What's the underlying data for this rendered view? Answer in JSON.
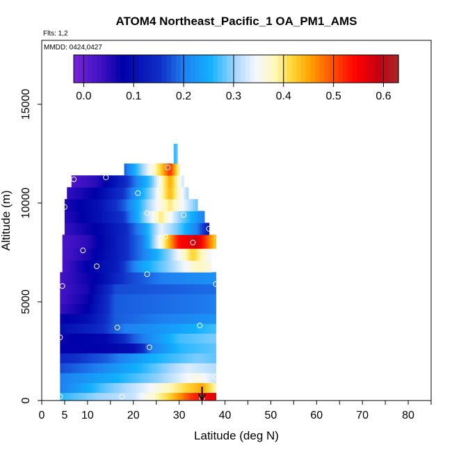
{
  "chart_data": {
    "type": "heatmap",
    "title": "ATOM4 Northeast_Pacific_1 OA_PM1_AMS",
    "subtitle_flights": "Flts: 1,2",
    "subtitle_dates": "MMDD: 0424,0427",
    "xlabel": "Latitude (deg N)",
    "ylabel": "Altitude (m)",
    "xlim": [
      0,
      85
    ],
    "ylim": [
      0,
      17500
    ],
    "x_ticks": [
      0,
      5,
      10,
      20,
      30,
      40,
      50,
      60,
      70,
      80
    ],
    "x_tick_labels": [
      "0",
      "5",
      "10",
      "20",
      "30",
      "40",
      "50",
      "60",
      "70",
      "80"
    ],
    "y_ticks": [
      0,
      5000,
      10000,
      15000
    ],
    "y_tick_labels": [
      "0",
      "5000",
      "10000",
      "15000"
    ],
    "colorbar": {
      "range": [
        -0.02,
        0.63
      ],
      "ticks": [
        0.0,
        0.1,
        0.2,
        0.3,
        0.4,
        0.5,
        0.6
      ],
      "tick_labels": [
        "0.0",
        "0.1",
        "0.2",
        "0.3",
        "0.4",
        "0.5",
        "0.6"
      ],
      "stops": [
        [
          0.0,
          "#7a22d8"
        ],
        [
          0.09,
          "#3a10c0"
        ],
        [
          0.15,
          "#0000a8"
        ],
        [
          0.27,
          "#1030c8"
        ],
        [
          0.34,
          "#2080f0"
        ],
        [
          0.42,
          "#10b0ff"
        ],
        [
          0.5,
          "#a8d8ff"
        ],
        [
          0.56,
          "#f4f8ff"
        ],
        [
          0.62,
          "#fff8b8"
        ],
        [
          0.67,
          "#ffd838"
        ],
        [
          0.73,
          "#ffa000"
        ],
        [
          0.81,
          "#ff4000"
        ],
        [
          0.87,
          "#ff0000"
        ],
        [
          0.94,
          "#c00010"
        ],
        [
          1.0,
          "#a82828"
        ]
      ]
    },
    "x_range_note": "Data coverage approx 4 to 38 deg N",
    "rows": [
      {
        "alt0": 0,
        "alt1": 400,
        "x0": 4,
        "x1": 38,
        "profile": [
          [
            4,
            0.26
          ],
          [
            12,
            0.3
          ],
          [
            20,
            0.32
          ],
          [
            28,
            0.42
          ],
          [
            33,
            0.52
          ],
          [
            38,
            0.57
          ]
        ]
      },
      {
        "alt0": 400,
        "alt1": 900,
        "x0": 4,
        "x1": 38,
        "profile": [
          [
            4,
            0.2
          ],
          [
            14,
            0.28
          ],
          [
            22,
            0.33
          ],
          [
            30,
            0.4
          ],
          [
            35,
            0.45
          ],
          [
            38,
            0.38
          ]
        ]
      },
      {
        "alt0": 900,
        "alt1": 1400,
        "x0": 4,
        "x1": 38,
        "profile": [
          [
            4,
            0.2
          ],
          [
            16,
            0.25
          ],
          [
            26,
            0.3
          ],
          [
            34,
            0.36
          ],
          [
            38,
            0.32
          ]
        ]
      },
      {
        "alt0": 1400,
        "alt1": 1900,
        "x0": 4,
        "x1": 38,
        "profile": [
          [
            4,
            0.17
          ],
          [
            12,
            0.2
          ],
          [
            22,
            0.26
          ],
          [
            32,
            0.33
          ],
          [
            38,
            0.31
          ]
        ]
      },
      {
        "alt0": 1900,
        "alt1": 2400,
        "x0": 4,
        "x1": 38,
        "profile": [
          [
            4,
            0.14
          ],
          [
            14,
            0.18
          ],
          [
            24,
            0.25
          ],
          [
            34,
            0.29
          ],
          [
            38,
            0.28
          ]
        ]
      },
      {
        "alt0": 2400,
        "alt1": 2900,
        "x0": 4,
        "x1": 38,
        "profile": [
          [
            4,
            0.08
          ],
          [
            12,
            0.08
          ],
          [
            20,
            0.1
          ],
          [
            24,
            0.2
          ],
          [
            30,
            0.26
          ],
          [
            38,
            0.28
          ]
        ]
      },
      {
        "alt0": 2900,
        "alt1": 3400,
        "x0": 4,
        "x1": 38,
        "profile": [
          [
            4,
            0.07
          ],
          [
            14,
            0.09
          ],
          [
            20,
            0.18
          ],
          [
            30,
            0.27
          ],
          [
            38,
            0.29
          ]
        ]
      },
      {
        "alt0": 3400,
        "alt1": 3900,
        "x0": 4,
        "x1": 38,
        "profile": [
          [
            4,
            0.1
          ],
          [
            12,
            0.14
          ],
          [
            18,
            0.2
          ],
          [
            28,
            0.23
          ],
          [
            38,
            0.27
          ]
        ]
      },
      {
        "alt0": 3900,
        "alt1": 4400,
        "x0": 4,
        "x1": 38,
        "profile": [
          [
            4,
            0.07
          ],
          [
            10,
            0.1
          ],
          [
            16,
            0.18
          ],
          [
            26,
            0.2
          ],
          [
            38,
            0.22
          ]
        ]
      },
      {
        "alt0": 4400,
        "alt1": 4900,
        "x0": 4,
        "x1": 38,
        "profile": [
          [
            4,
            0.04
          ],
          [
            10,
            0.08
          ],
          [
            16,
            0.18
          ],
          [
            38,
            0.2
          ]
        ]
      },
      {
        "alt0": 4900,
        "alt1": 5400,
        "x0": 4,
        "x1": 38,
        "profile": [
          [
            4,
            0.03
          ],
          [
            10,
            0.07
          ],
          [
            16,
            0.18
          ],
          [
            38,
            0.2
          ]
        ]
      },
      {
        "alt0": 5400,
        "alt1": 5900,
        "x0": 4,
        "x1": 38,
        "profile": [
          [
            4,
            0.03
          ],
          [
            10,
            0.06
          ],
          [
            16,
            0.17
          ],
          [
            38,
            0.19
          ]
        ]
      },
      {
        "alt0": 5900,
        "alt1": 6500,
        "x0": 4,
        "x1": 38,
        "profile": [
          [
            4,
            0.03
          ],
          [
            12,
            0.08
          ],
          [
            18,
            0.16
          ],
          [
            26,
            0.2
          ],
          [
            38,
            0.22
          ]
        ]
      },
      {
        "alt0": 6500,
        "alt1": 7100,
        "x0": 4.5,
        "x1": 37,
        "profile": [
          [
            4,
            0.02
          ],
          [
            10,
            0.08
          ],
          [
            16,
            0.12
          ],
          [
            22,
            0.24
          ],
          [
            28,
            0.3
          ],
          [
            34,
            0.38
          ],
          [
            37,
            0.36
          ]
        ]
      },
      {
        "alt0": 7100,
        "alt1": 7700,
        "x0": 4.5,
        "x1": 37,
        "profile": [
          [
            4,
            0.02
          ],
          [
            10,
            0.06
          ],
          [
            16,
            0.12
          ],
          [
            22,
            0.2
          ],
          [
            28,
            0.3
          ],
          [
            33,
            0.42
          ],
          [
            37,
            0.34
          ]
        ]
      },
      {
        "alt0": 7700,
        "alt1": 8400,
        "x0": 4.5,
        "x1": 38,
        "profile": [
          [
            4,
            0.02
          ],
          [
            10,
            0.05
          ],
          [
            16,
            0.12
          ],
          [
            22,
            0.2
          ],
          [
            26,
            0.36
          ],
          [
            30,
            0.54
          ],
          [
            34,
            0.58
          ],
          [
            38,
            0.42
          ]
        ]
      },
      {
        "alt0": 8400,
        "alt1": 9000,
        "x0": 5,
        "x1": 36.5,
        "profile": [
          [
            5,
            0.04
          ],
          [
            12,
            0.08
          ],
          [
            18,
            0.14
          ],
          [
            22,
            0.22
          ],
          [
            26,
            0.34
          ],
          [
            30,
            0.28
          ],
          [
            34,
            0.2
          ],
          [
            36.5,
            0.12
          ]
        ]
      },
      {
        "alt0": 9000,
        "alt1": 9600,
        "x0": 5,
        "x1": 35.5,
        "profile": [
          [
            5,
            0.05
          ],
          [
            12,
            0.1
          ],
          [
            18,
            0.16
          ],
          [
            22,
            0.28
          ],
          [
            26,
            0.4
          ],
          [
            30,
            0.3
          ],
          [
            35.5,
            0.2
          ]
        ]
      },
      {
        "alt0": 9600,
        "alt1": 10200,
        "x0": 5,
        "x1": 34,
        "profile": [
          [
            5,
            0.06
          ],
          [
            12,
            0.1
          ],
          [
            18,
            0.18
          ],
          [
            24,
            0.32
          ],
          [
            28,
            0.4
          ],
          [
            34,
            0.28
          ]
        ]
      },
      {
        "alt0": 10200,
        "alt1": 10800,
        "x0": 5.5,
        "x1": 32,
        "profile": [
          [
            5,
            0.04
          ],
          [
            12,
            0.08
          ],
          [
            18,
            0.16
          ],
          [
            24,
            0.3
          ],
          [
            28,
            0.44
          ],
          [
            32,
            0.3
          ]
        ]
      },
      {
        "alt0": 10800,
        "alt1": 11400,
        "x0": 6.5,
        "x1": 31,
        "profile": [
          [
            6,
            0.02
          ],
          [
            12,
            0.05
          ],
          [
            18,
            0.14
          ],
          [
            24,
            0.28
          ],
          [
            28,
            0.45
          ],
          [
            31,
            0.32
          ]
        ]
      },
      {
        "alt0": 11400,
        "alt1": 12000,
        "x0": 18,
        "x1": 30,
        "profile": [
          [
            18,
            0.18
          ],
          [
            22,
            0.3
          ],
          [
            26,
            0.42
          ],
          [
            28,
            0.52
          ],
          [
            30,
            0.38
          ]
        ]
      },
      {
        "alt0": 12000,
        "alt1": 13000,
        "x0": 28.8,
        "x1": 29.6,
        "profile": [
          [
            28.8,
            0.26
          ],
          [
            29.6,
            0.28
          ]
        ]
      }
    ],
    "flight_points": [
      {
        "lat": 4,
        "alt": 200
      },
      {
        "lat": 17.5,
        "alt": 200
      },
      {
        "lat": 24,
        "alt": 150
      },
      {
        "lat": 35,
        "alt": 100
      },
      {
        "lat": 38,
        "alt": 1200
      },
      {
        "lat": 4,
        "alt": 3200
      },
      {
        "lat": 23.5,
        "alt": 2700
      },
      {
        "lat": 16.5,
        "alt": 3700
      },
      {
        "lat": 34.5,
        "alt": 3800
      },
      {
        "lat": 4.5,
        "alt": 5800
      },
      {
        "lat": 38,
        "alt": 5900
      },
      {
        "lat": 23,
        "alt": 6400
      },
      {
        "lat": 12,
        "alt": 6800
      },
      {
        "lat": 9,
        "alt": 7600
      },
      {
        "lat": 27,
        "alt": 8300
      },
      {
        "lat": 33,
        "alt": 8000
      },
      {
        "lat": 36.5,
        "alt": 8700
      },
      {
        "lat": 5,
        "alt": 9800
      },
      {
        "lat": 23,
        "alt": 9500
      },
      {
        "lat": 31,
        "alt": 9400
      },
      {
        "lat": 21,
        "alt": 10500
      },
      {
        "lat": 7,
        "alt": 11200
      },
      {
        "lat": 14,
        "alt": 11300
      },
      {
        "lat": 27.5,
        "alt": 11800
      }
    ],
    "arrow_marker": {
      "lat": 35,
      "alt_top": 700,
      "alt_bottom": 0
    }
  }
}
